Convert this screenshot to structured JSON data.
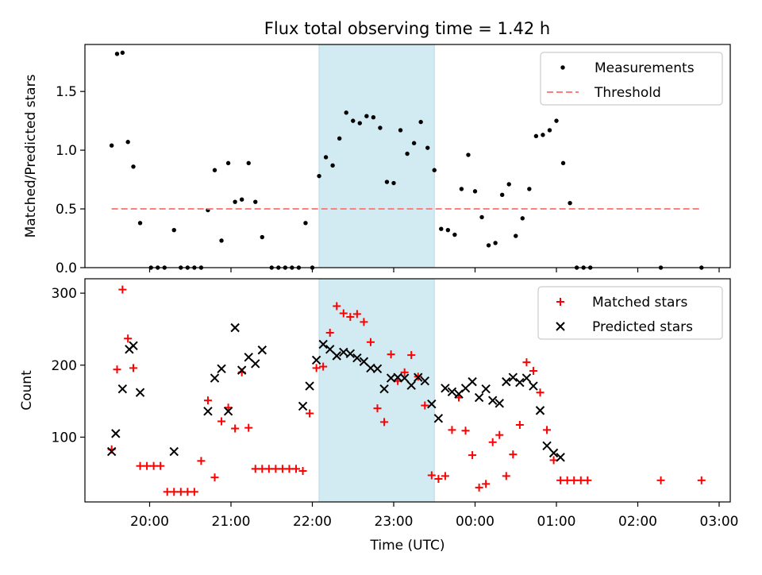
{
  "title": "Flux total observing time = 1.42 h",
  "colors": {
    "measurement": "#000000",
    "threshold": "#ff7f7f",
    "matched": "#ff0000",
    "predicted": "#000000",
    "highlight_band": "#add8e6"
  },
  "chart_data": [
    {
      "type": "scatter",
      "panel": "top",
      "ylabel": "Matched/Predicted stars",
      "xlabel": "",
      "ylim": [
        0,
        1.9
      ],
      "yticks": [
        0.0,
        0.5,
        1.0,
        1.5
      ],
      "ytick_labels": [
        "0.0",
        "0.5",
        "1.0",
        "1.5"
      ],
      "grid": false,
      "legend_position": "top-right",
      "highlight_span": [
        "22:05",
        "23:30"
      ],
      "series": [
        {
          "name": "Measurements",
          "kind": "points",
          "points": [
            [
              "19:32",
              1.04
            ],
            [
              "19:36",
              1.82
            ],
            [
              "19:40",
              1.83
            ],
            [
              "19:44",
              1.07
            ],
            [
              "19:48",
              0.86
            ],
            [
              "19:53",
              0.38
            ],
            [
              "20:01",
              0.0
            ],
            [
              "20:06",
              0.0
            ],
            [
              "20:11",
              0.0
            ],
            [
              "20:18",
              0.32
            ],
            [
              "20:23",
              0.0
            ],
            [
              "20:28",
              0.0
            ],
            [
              "20:33",
              0.0
            ],
            [
              "20:38",
              0.0
            ],
            [
              "20:43",
              0.49
            ],
            [
              "20:48",
              0.83
            ],
            [
              "20:53",
              0.23
            ],
            [
              "20:58",
              0.89
            ],
            [
              "21:03",
              0.56
            ],
            [
              "21:08",
              0.58
            ],
            [
              "21:13",
              0.89
            ],
            [
              "21:18",
              0.56
            ],
            [
              "21:23",
              0.26
            ],
            [
              "21:30",
              0.0
            ],
            [
              "21:35",
              0.0
            ],
            [
              "21:40",
              0.0
            ],
            [
              "21:45",
              0.0
            ],
            [
              "21:50",
              0.0
            ],
            [
              "21:55",
              0.38
            ],
            [
              "22:00",
              0.0
            ],
            [
              "22:05",
              0.78
            ],
            [
              "22:10",
              0.94
            ],
            [
              "22:15",
              0.87
            ],
            [
              "22:20",
              1.1
            ],
            [
              "22:25",
              1.32
            ],
            [
              "22:30",
              1.25
            ],
            [
              "22:35",
              1.23
            ],
            [
              "22:40",
              1.29
            ],
            [
              "22:45",
              1.28
            ],
            [
              "22:50",
              1.19
            ],
            [
              "22:55",
              0.73
            ],
            [
              "23:00",
              0.72
            ],
            [
              "23:05",
              1.17
            ],
            [
              "23:10",
              0.97
            ],
            [
              "23:15",
              1.06
            ],
            [
              "23:20",
              1.24
            ],
            [
              "23:25",
              1.02
            ],
            [
              "23:30",
              0.83
            ],
            [
              "23:35",
              0.33
            ],
            [
              "23:40",
              0.32
            ],
            [
              "23:45",
              0.28
            ],
            [
              "23:50",
              0.67
            ],
            [
              "23:55",
              0.96
            ],
            [
              "00:00",
              0.65
            ],
            [
              "00:05",
              0.43
            ],
            [
              "00:10",
              0.19
            ],
            [
              "00:15",
              0.21
            ],
            [
              "00:20",
              0.62
            ],
            [
              "00:25",
              0.71
            ],
            [
              "00:30",
              0.27
            ],
            [
              "00:35",
              0.42
            ],
            [
              "00:40",
              0.67
            ],
            [
              "00:45",
              1.12
            ],
            [
              "00:50",
              1.13
            ],
            [
              "00:55",
              1.17
            ],
            [
              "01:00",
              1.25
            ],
            [
              "01:05",
              0.89
            ],
            [
              "01:10",
              0.55
            ],
            [
              "01:15",
              0.0
            ],
            [
              "01:20",
              0.0
            ],
            [
              "01:25",
              0.0
            ],
            [
              "02:17",
              0.0
            ],
            [
              "02:47",
              0.0
            ]
          ]
        },
        {
          "name": "Threshold",
          "kind": "dashed-line",
          "points": [
            [
              "19:32",
              0.5
            ],
            [
              "02:47",
              0.5
            ]
          ]
        }
      ]
    },
    {
      "type": "scatter",
      "panel": "bottom",
      "ylabel": "Count",
      "xlabel": "Time (UTC)",
      "ylim": [
        10,
        320
      ],
      "yticks": [
        100,
        200,
        300
      ],
      "ytick_labels": [
        "100",
        "200",
        "300"
      ],
      "x_tick_labels": [
        "20:00",
        "21:00",
        "22:00",
        "23:00",
        "00:00",
        "01:00",
        "02:00",
        "03:00"
      ],
      "grid": false,
      "legend_position": "top-right",
      "highlight_span": [
        "22:05",
        "23:30"
      ],
      "series": [
        {
          "name": "Matched stars",
          "marker": "plus",
          "points": [
            [
              "19:32",
              83
            ],
            [
              "19:36",
              194
            ],
            [
              "19:40",
              305
            ],
            [
              "19:44",
              237
            ],
            [
              "19:48",
              196
            ],
            [
              "19:53",
              60
            ],
            [
              "19:58",
              60
            ],
            [
              "20:03",
              60
            ],
            [
              "20:08",
              60
            ],
            [
              "20:13",
              24
            ],
            [
              "20:18",
              24
            ],
            [
              "20:23",
              24
            ],
            [
              "20:28",
              24
            ],
            [
              "20:33",
              24
            ],
            [
              "20:38",
              67
            ],
            [
              "20:43",
              151
            ],
            [
              "20:48",
              44
            ],
            [
              "20:53",
              122
            ],
            [
              "20:58",
              141
            ],
            [
              "21:03",
              112
            ],
            [
              "21:08",
              190
            ],
            [
              "21:13",
              113
            ],
            [
              "21:18",
              56
            ],
            [
              "21:23",
              56
            ],
            [
              "21:28",
              56
            ],
            [
              "21:33",
              56
            ],
            [
              "21:38",
              56
            ],
            [
              "21:43",
              56
            ],
            [
              "21:48",
              56
            ],
            [
              "21:53",
              53
            ],
            [
              "21:58",
              133
            ],
            [
              "22:03",
              196
            ],
            [
              "22:08",
              198
            ],
            [
              "22:13",
              245
            ],
            [
              "22:18",
              282
            ],
            [
              "22:23",
              272
            ],
            [
              "22:28",
              267
            ],
            [
              "22:33",
              271
            ],
            [
              "22:38",
              260
            ],
            [
              "22:43",
              232
            ],
            [
              "22:48",
              140
            ],
            [
              "22:53",
              121
            ],
            [
              "22:58",
              215
            ],
            [
              "23:03",
              178
            ],
            [
              "23:08",
              190
            ],
            [
              "23:13",
              214
            ],
            [
              "23:18",
              184
            ],
            [
              "23:23",
              144
            ],
            [
              "23:28",
              47
            ],
            [
              "23:33",
              42
            ],
            [
              "23:38",
              46
            ],
            [
              "23:43",
              110
            ],
            [
              "23:48",
              155
            ],
            [
              "23:53",
              109
            ],
            [
              "23:58",
              75
            ],
            [
              "00:03",
              30
            ],
            [
              "00:08",
              35
            ],
            [
              "00:13",
              93
            ],
            [
              "00:18",
              103
            ],
            [
              "00:23",
              46
            ],
            [
              "00:28",
              76
            ],
            [
              "00:33",
              117
            ],
            [
              "00:38",
              204
            ],
            [
              "00:43",
              192
            ],
            [
              "00:48",
              162
            ],
            [
              "00:53",
              110
            ],
            [
              "00:58",
              68
            ],
            [
              "01:03",
              40
            ],
            [
              "01:08",
              40
            ],
            [
              "01:13",
              40
            ],
            [
              "01:18",
              40
            ],
            [
              "01:23",
              40
            ],
            [
              "02:17",
              40
            ],
            [
              "02:47",
              40
            ]
          ]
        },
        {
          "name": "Predicted stars",
          "marker": "x",
          "points": [
            [
              "19:32",
              80
            ],
            [
              "19:35",
              105
            ],
            [
              "19:40",
              167
            ],
            [
              "19:45",
              222
            ],
            [
              "19:48",
              227
            ],
            [
              "19:53",
              162
            ],
            [
              "20:18",
              80
            ],
            [
              "20:43",
              136
            ],
            [
              "20:48",
              182
            ],
            [
              "20:53",
              195
            ],
            [
              "20:58",
              136
            ],
            [
              "21:03",
              252
            ],
            [
              "21:08",
              193
            ],
            [
              "21:13",
              211
            ],
            [
              "21:18",
              202
            ],
            [
              "21:23",
              221
            ],
            [
              "21:53",
              143
            ],
            [
              "21:58",
              171
            ],
            [
              "22:03",
              207
            ],
            [
              "22:08",
              229
            ],
            [
              "22:13",
              222
            ],
            [
              "22:18",
              213
            ],
            [
              "22:23",
              218
            ],
            [
              "22:28",
              216
            ],
            [
              "22:33",
              210
            ],
            [
              "22:38",
              205
            ],
            [
              "22:43",
              196
            ],
            [
              "22:48",
              195
            ],
            [
              "22:53",
              167
            ],
            [
              "22:58",
              182
            ],
            [
              "23:03",
              183
            ],
            [
              "23:08",
              182
            ],
            [
              "23:13",
              172
            ],
            [
              "23:18",
              183
            ],
            [
              "23:23",
              178
            ],
            [
              "23:28",
              146
            ],
            [
              "23:33",
              126
            ],
            [
              "23:38",
              168
            ],
            [
              "23:43",
              163
            ],
            [
              "23:48",
              160
            ],
            [
              "23:53",
              168
            ],
            [
              "23:58",
              177
            ],
            [
              "00:03",
              155
            ],
            [
              "00:08",
              167
            ],
            [
              "00:13",
              151
            ],
            [
              "00:18",
              147
            ],
            [
              "00:23",
              177
            ],
            [
              "00:28",
              183
            ],
            [
              "00:33",
              176
            ],
            [
              "00:38",
              182
            ],
            [
              "00:43",
              171
            ],
            [
              "00:48",
              137
            ],
            [
              "00:53",
              88
            ],
            [
              "00:58",
              78
            ],
            [
              "01:03",
              72
            ]
          ]
        }
      ]
    }
  ]
}
